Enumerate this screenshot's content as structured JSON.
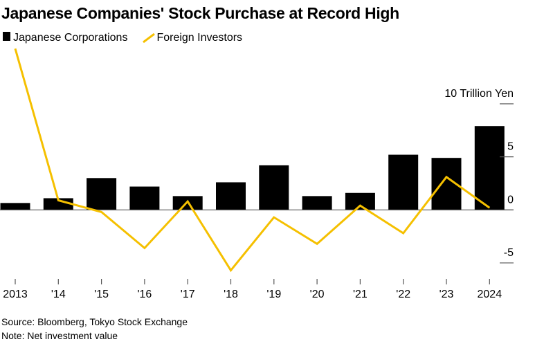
{
  "chart_data": {
    "type": "bar+line",
    "title": "Japanese Companies' Stock Purchase at Record High",
    "unit_label": "10 Trillion Yen",
    "categories": [
      "2013",
      "'14",
      "'15",
      "'16",
      "'17",
      "'18",
      "'19",
      "'20",
      "'21",
      "'22",
      "'23",
      "2024"
    ],
    "series": [
      {
        "name": "Japanese Corporations",
        "type": "bar",
        "color": "#000000",
        "values": [
          0.65,
          1.1,
          3.0,
          2.2,
          1.3,
          2.6,
          4.2,
          1.3,
          1.6,
          5.2,
          4.9,
          7.9
        ]
      },
      {
        "name": "Foreign Investors",
        "type": "line",
        "color": "#F5C000",
        "values": [
          15.2,
          0.9,
          -0.2,
          -3.6,
          0.8,
          -5.7,
          -0.7,
          -3.2,
          0.4,
          -2.2,
          3.1,
          0.2
        ]
      }
    ],
    "yticks": [
      -5,
      0,
      5,
      10
    ],
    "ytick_labels": [
      "-5",
      "0",
      "5",
      "10 Trillion Yen"
    ],
    "ylim": [
      -6.5,
      10.5
    ],
    "legend_position": "top-left",
    "grid": false
  },
  "footer": {
    "source": "Source: Bloomberg, Tokyo Stock Exchange",
    "note": "Note: Net investment value"
  }
}
